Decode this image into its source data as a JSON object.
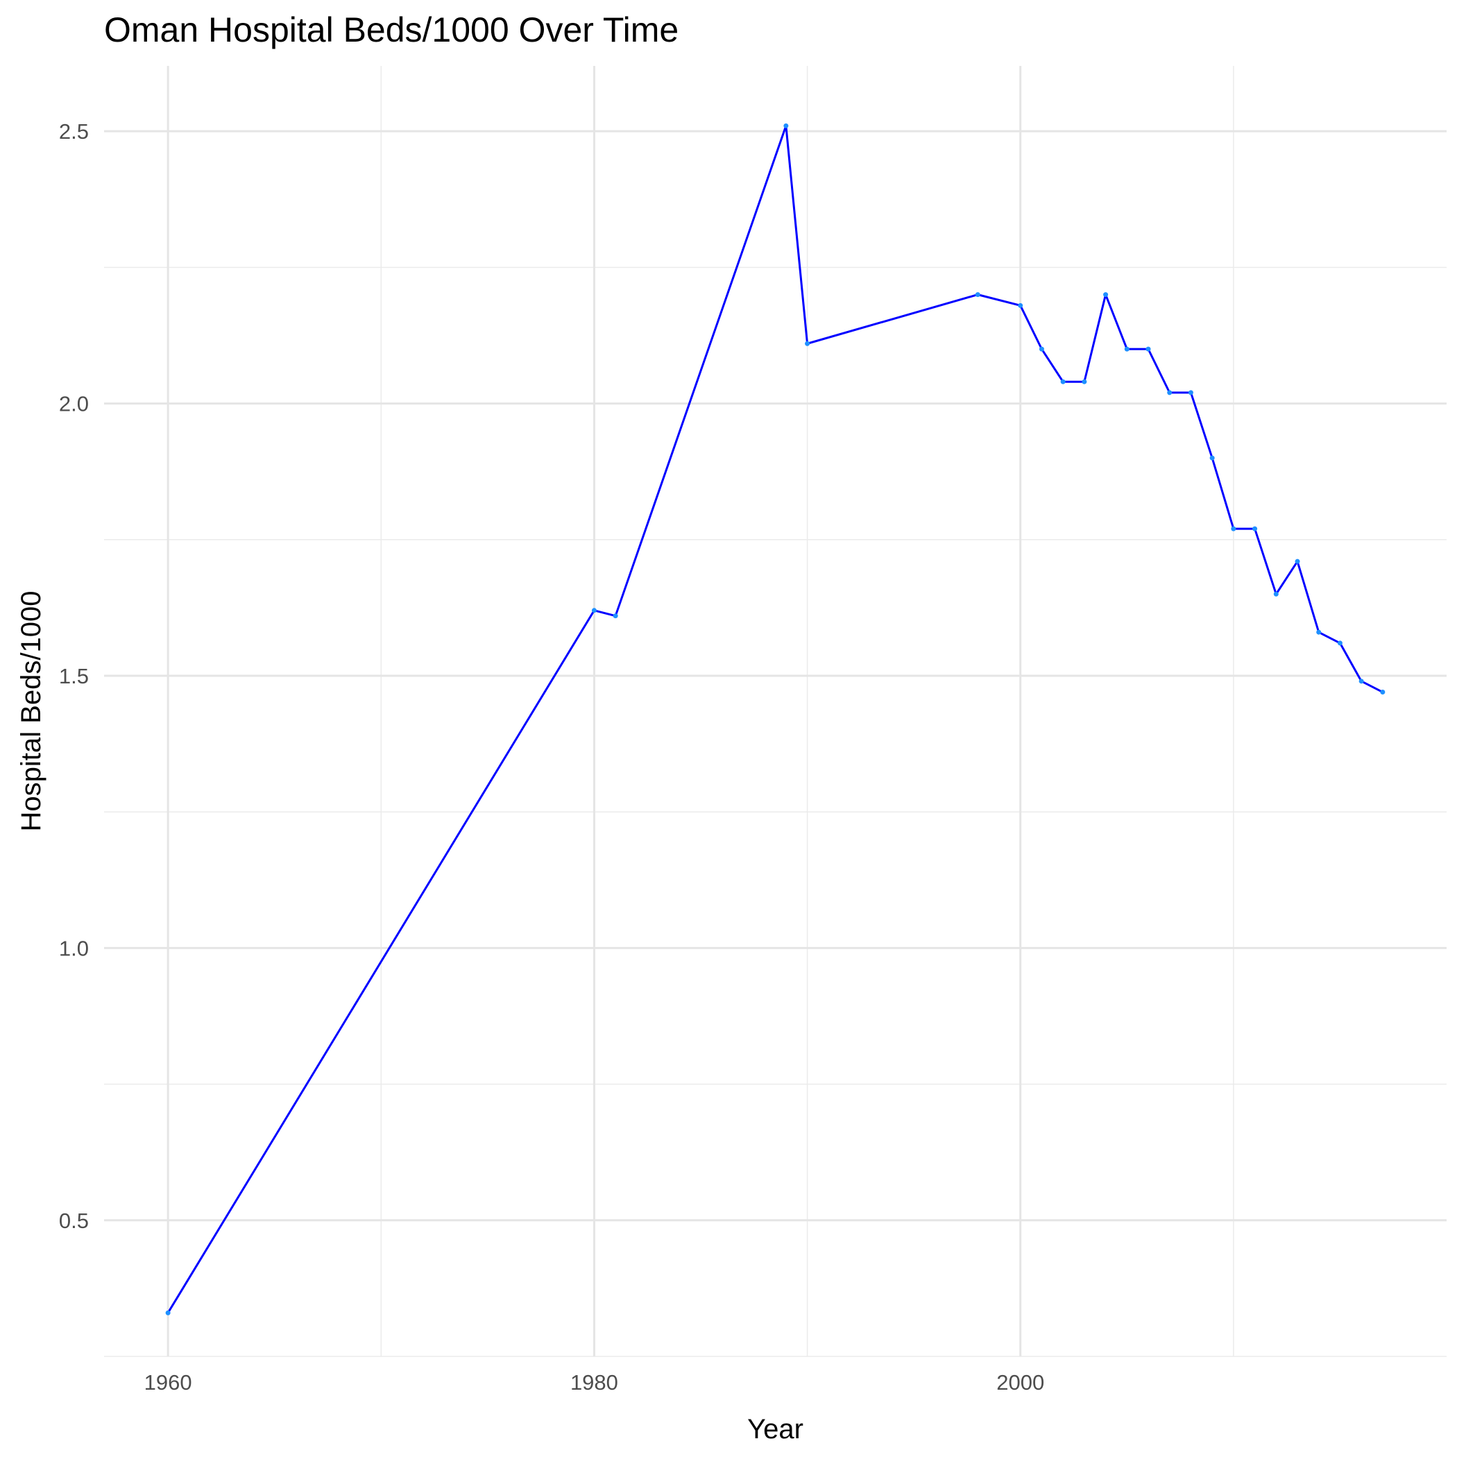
{
  "chart_data": {
    "type": "line",
    "title": "Oman Hospital Beds/1000 Over Time",
    "xlabel": "Year",
    "ylabel": "Hospital Beds/1000",
    "xlim": [
      1957,
      2020
    ],
    "ylim": [
      0.25,
      2.62
    ],
    "x_ticks": [
      1960,
      1980,
      2000
    ],
    "y_ticks": [
      0.5,
      1.0,
      1.5,
      2.0,
      2.5
    ],
    "x_tick_labels": [
      "1960",
      "1980",
      "2000"
    ],
    "y_tick_labels": [
      "0.5",
      "1.0",
      "1.5",
      "2.0",
      "2.5"
    ],
    "grid": true,
    "line_color": "#0000ff",
    "point_color": "#1e90ff",
    "series": [
      {
        "x": [
          1960,
          1980,
          1981,
          1989,
          1990,
          1998,
          2000,
          2001,
          2002,
          2003,
          2004,
          2005,
          2006,
          2007,
          2008,
          2009,
          2010,
          2011,
          2012,
          2013,
          2014,
          2015,
          2016,
          2017
        ],
        "values": [
          0.33,
          1.62,
          1.61,
          2.51,
          2.11,
          2.2,
          2.18,
          2.1,
          2.04,
          2.04,
          2.2,
          2.1,
          2.1,
          2.02,
          2.02,
          1.9,
          1.77,
          1.77,
          1.65,
          1.71,
          1.58,
          1.56,
          1.49,
          1.47
        ]
      }
    ]
  }
}
